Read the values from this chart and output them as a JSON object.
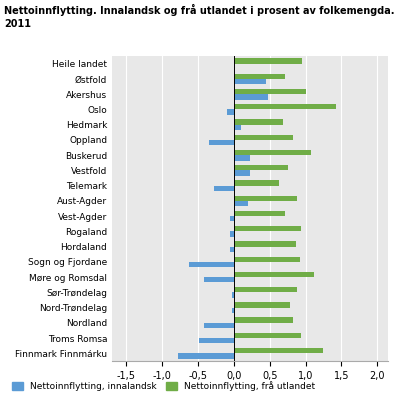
{
  "title_line1": "Nettoinnflytting. Innalandsk og frå utlandet i prosent av folkemengda.",
  "title_line2": "2011",
  "categories": [
    "Heile landet",
    "Østfold",
    "Akershus",
    "Oslo",
    "Hedmark",
    "Oppland",
    "Buskerud",
    "Vestfold",
    "Telemark",
    "Aust-Agder",
    "Vest-Agder",
    "Rogaland",
    "Hordaland",
    "Sogn og Fjordane",
    "Møre og Romsdal",
    "Sør-Trøndelag",
    "Nord-Trøndelag",
    "Nordland",
    "Troms Romsa",
    "Finnmark Finnmárku"
  ],
  "innalandsk": [
    0.0,
    0.45,
    0.48,
    -0.1,
    0.1,
    -0.35,
    0.22,
    0.22,
    -0.28,
    0.2,
    -0.05,
    -0.05,
    -0.05,
    -0.62,
    -0.42,
    -0.02,
    -0.02,
    -0.42,
    -0.48,
    -0.78
  ],
  "fra_utlandet": [
    0.95,
    0.72,
    1.0,
    1.43,
    0.68,
    0.82,
    1.08,
    0.75,
    0.63,
    0.88,
    0.71,
    0.93,
    0.87,
    0.92,
    1.12,
    0.88,
    0.78,
    0.82,
    0.93,
    1.25
  ],
  "color_innalandsk": "#5b9bd5",
  "color_fra_utlandet": "#70ad47",
  "xtick_labels": [
    "-1,5",
    "-1,0",
    "-0,5",
    "0,0",
    "0,5",
    "1,0",
    "1,5",
    "2,0"
  ],
  "xtick_values": [
    -1.5,
    -1.0,
    -0.5,
    0.0,
    0.5,
    1.0,
    1.5,
    2.0
  ],
  "xlim": [
    -1.7,
    2.15
  ],
  "legend_label_innalandsk": "Nettoinnflytting, innalandsk",
  "legend_label_fra_utlandet": "Nettoinnflytting, frå utlandet",
  "figsize": [
    4.0,
    4.01
  ],
  "dpi": 100
}
